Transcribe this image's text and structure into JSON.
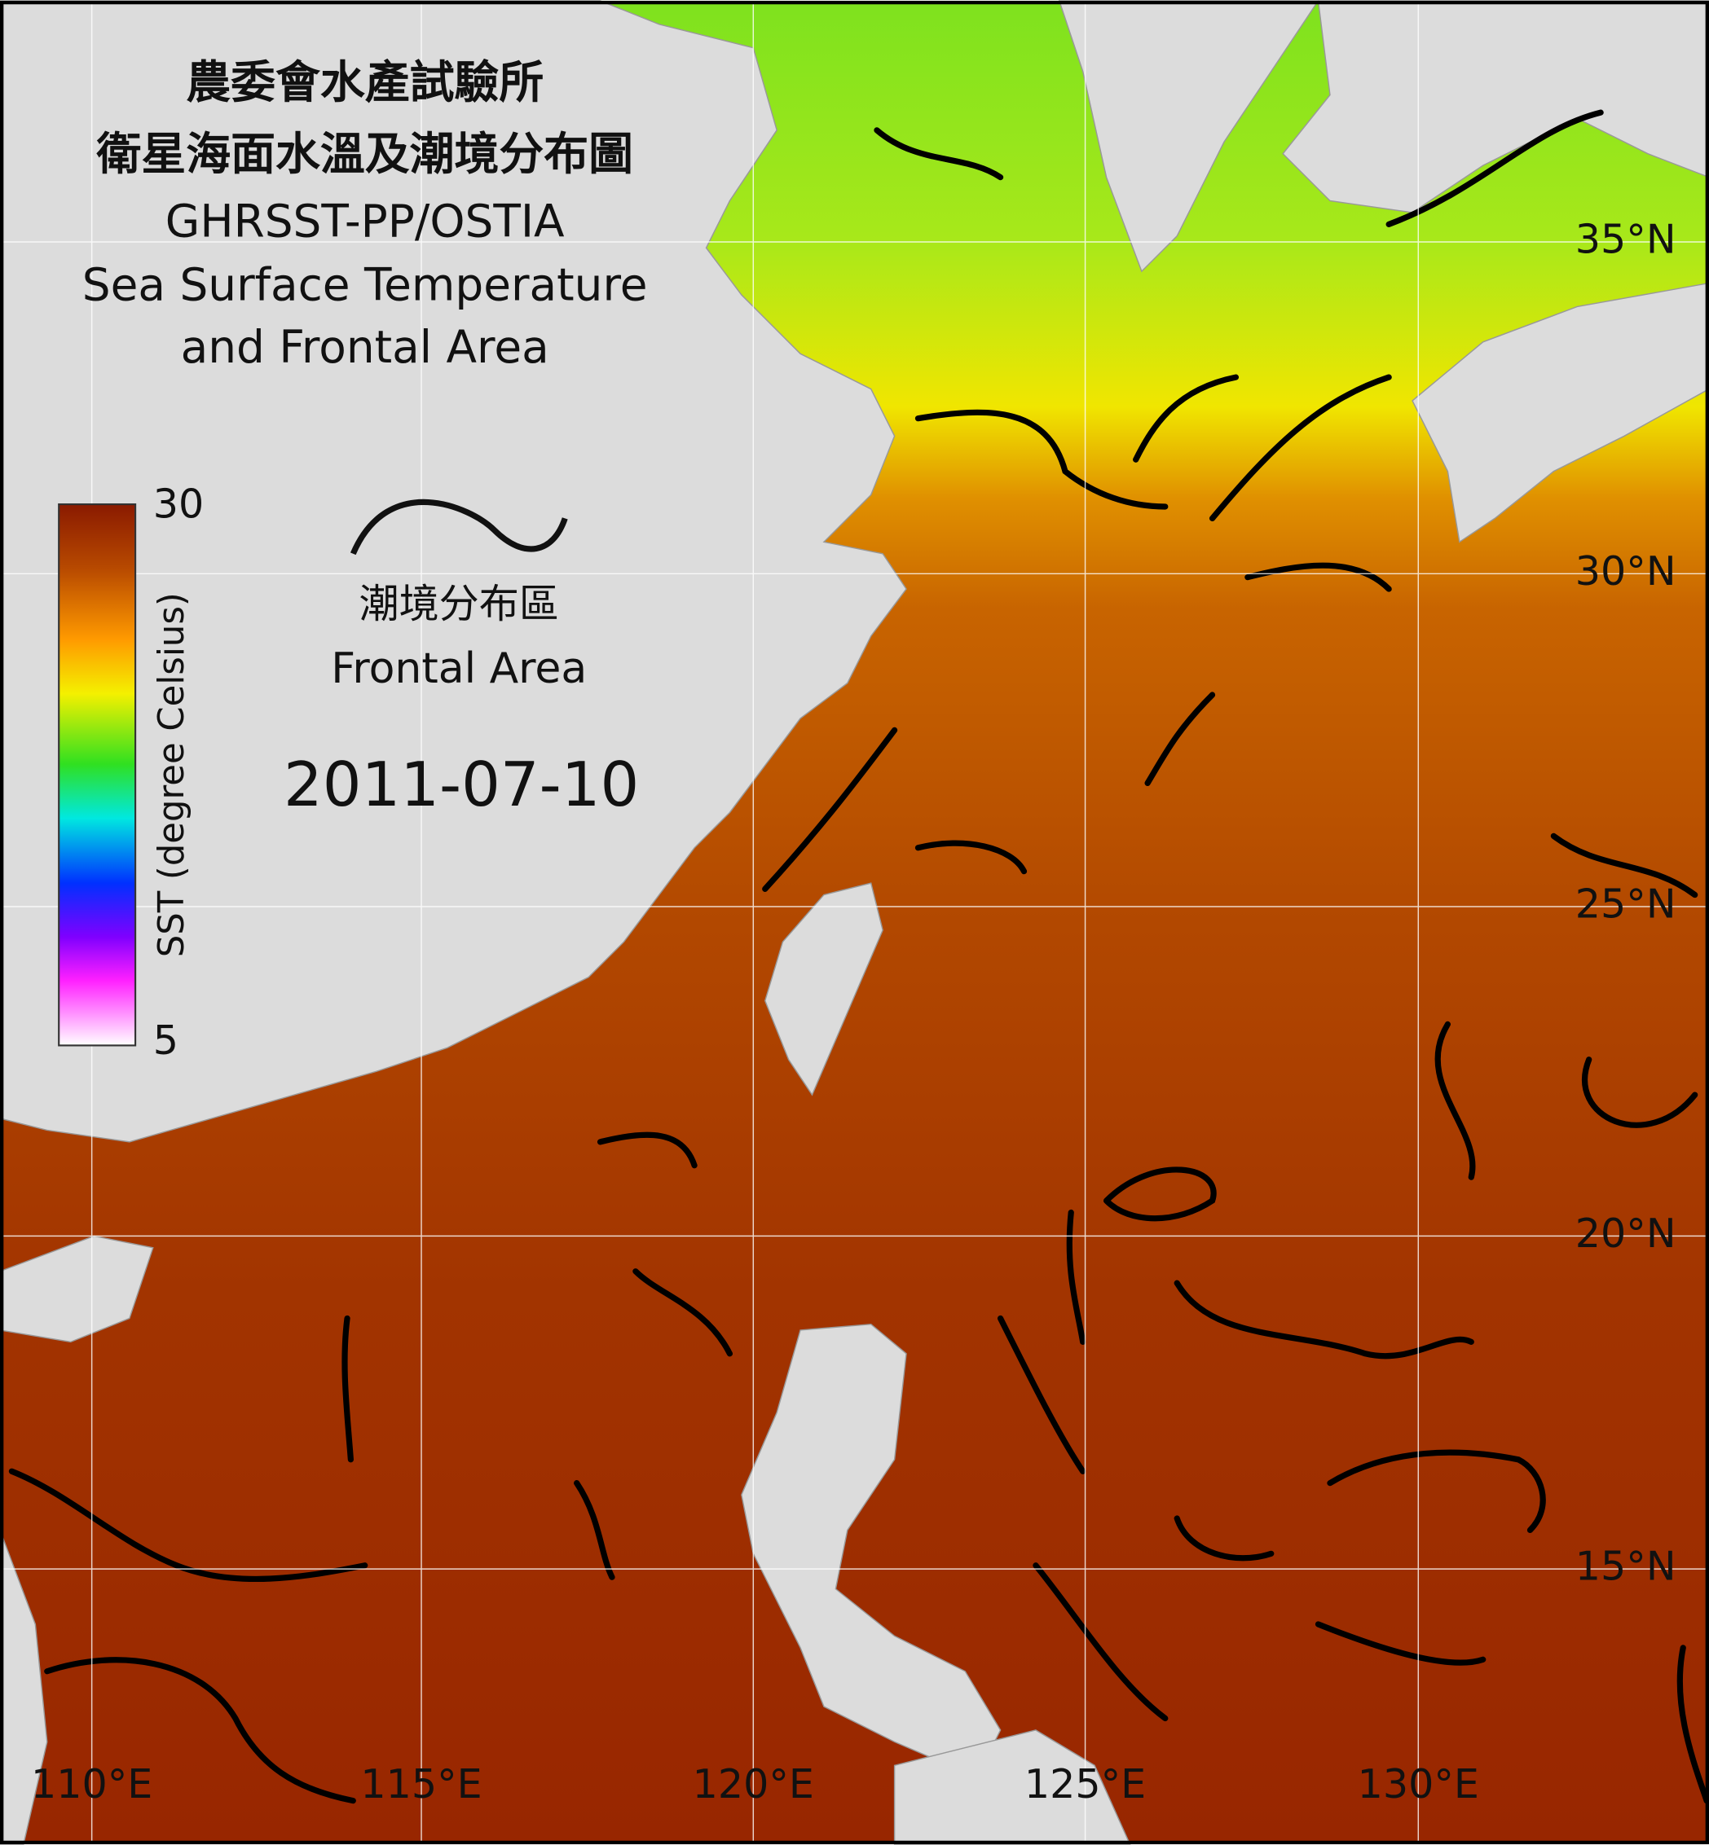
{
  "title": [
    "農委會水產試驗所",
    "衛星海面水溫及潮境分布圖",
    "GHRSST-PP/OSTIA",
    "Sea Surface Temperature",
    "and Frontal Area"
  ],
  "colorbar": {
    "label": "SST (degree Celsius)",
    "ticks": [
      30,
      5
    ]
  },
  "legend": {
    "label_zh": "潮境分布區",
    "label_en": "Frontal Area"
  },
  "date": "2011-07-10",
  "grid": {
    "lat_labels": [
      "35°N",
      "30°N",
      "25°N",
      "20°N",
      "15°N"
    ],
    "lon_labels": [
      "110°E",
      "115°E",
      "120°E",
      "125°E",
      "130°E"
    ]
  }
}
